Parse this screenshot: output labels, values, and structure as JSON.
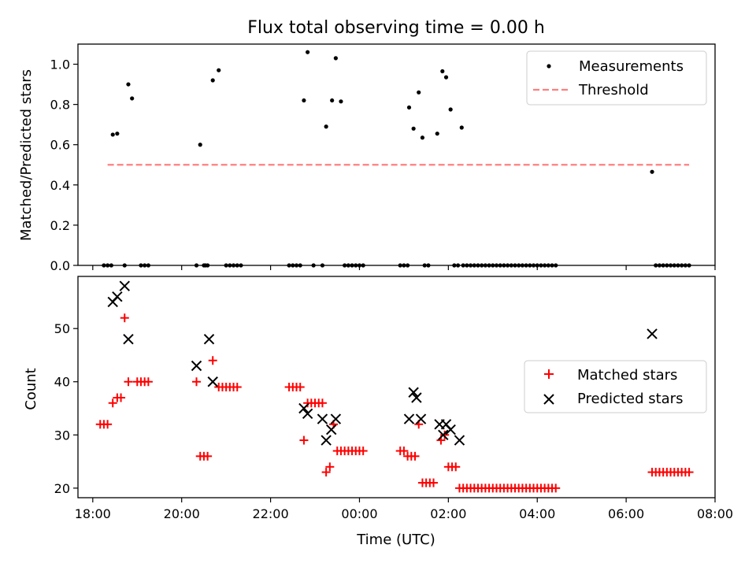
{
  "chart_data": [
    {
      "type": "scatter",
      "title": "Flux total observing time = 0.00 h",
      "ylabel": "Matched/Predicted stars",
      "xlabel": "",
      "xlim": [
        "17:40",
        "08:00"
      ],
      "ylim": [
        0,
        1.1
      ],
      "yticks": [
        0.0,
        0.2,
        0.4,
        0.6,
        0.8,
        1.0
      ],
      "ytick_labels": [
        "0.0",
        "0.2",
        "0.4",
        "0.6",
        "0.8",
        "1.0"
      ],
      "grid": false,
      "legend_placement": "top-right",
      "series": [
        {
          "name": "Measurements",
          "kind": "scatter",
          "color": "#000000",
          "marker": "dot",
          "points": [
            [
              "18:15",
              0
            ],
            [
              "18:20",
              0
            ],
            [
              "18:25",
              0
            ],
            [
              "18:27",
              0.65
            ],
            [
              "18:33",
              0.655
            ],
            [
              "18:43",
              0
            ],
            [
              "18:48",
              0.9
            ],
            [
              "18:53",
              0.83
            ],
            [
              "19:05",
              0
            ],
            [
              "19:10",
              0
            ],
            [
              "19:15",
              0
            ],
            [
              "20:20",
              0
            ],
            [
              "20:25",
              0.6
            ],
            [
              "20:30",
              0
            ],
            [
              "20:32",
              0
            ],
            [
              "20:35",
              0
            ],
            [
              "20:42",
              0.92
            ],
            [
              "20:50",
              0.97
            ],
            [
              "21:00",
              0
            ],
            [
              "21:05",
              0
            ],
            [
              "21:10",
              0
            ],
            [
              "21:15",
              0
            ],
            [
              "21:20",
              0
            ],
            [
              "22:25",
              0
            ],
            [
              "22:30",
              0
            ],
            [
              "22:35",
              0
            ],
            [
              "22:40",
              0
            ],
            [
              "22:45",
              0.82
            ],
            [
              "22:50",
              1.06
            ],
            [
              "22:58",
              0
            ],
            [
              "23:10",
              0
            ],
            [
              "23:15",
              0.69
            ],
            [
              "23:23",
              0.82
            ],
            [
              "23:28",
              1.03
            ],
            [
              "23:35",
              0.815
            ],
            [
              "23:40",
              0
            ],
            [
              "23:45",
              0
            ],
            [
              "23:50",
              0
            ],
            [
              "23:55",
              0
            ],
            [
              "00:00",
              0
            ],
            [
              "00:05",
              0
            ],
            [
              "00:55",
              0
            ],
            [
              "01:00",
              0
            ],
            [
              "01:05",
              0
            ],
            [
              "01:07",
              0.785
            ],
            [
              "01:13",
              0.68
            ],
            [
              "01:20",
              0.86
            ],
            [
              "01:25",
              0.635
            ],
            [
              "01:28",
              0
            ],
            [
              "01:33",
              0
            ],
            [
              "01:45",
              0.655
            ],
            [
              "01:52",
              0.965
            ],
            [
              "01:57",
              0.935
            ],
            [
              "02:03",
              0.775
            ],
            [
              "02:08",
              0
            ],
            [
              "02:13",
              0
            ],
            [
              "02:18",
              0.685
            ],
            [
              "02:20",
              0
            ],
            [
              "02:25",
              0
            ],
            [
              "02:30",
              0
            ],
            [
              "02:35",
              0
            ],
            [
              "02:40",
              0
            ],
            [
              "02:45",
              0
            ],
            [
              "02:50",
              0
            ],
            [
              "02:55",
              0
            ],
            [
              "03:00",
              0
            ],
            [
              "03:05",
              0
            ],
            [
              "03:10",
              0
            ],
            [
              "03:15",
              0
            ],
            [
              "03:20",
              0
            ],
            [
              "03:25",
              0
            ],
            [
              "03:30",
              0
            ],
            [
              "03:35",
              0
            ],
            [
              "03:40",
              0
            ],
            [
              "03:45",
              0
            ],
            [
              "03:50",
              0
            ],
            [
              "03:55",
              0
            ],
            [
              "04:00",
              0
            ],
            [
              "04:05",
              0
            ],
            [
              "04:10",
              0
            ],
            [
              "04:15",
              0
            ],
            [
              "04:20",
              0
            ],
            [
              "04:25",
              0
            ],
            [
              "06:35",
              0.465
            ],
            [
              "06:40",
              0
            ],
            [
              "06:45",
              0
            ],
            [
              "06:50",
              0
            ],
            [
              "06:55",
              0
            ],
            [
              "07:00",
              0
            ],
            [
              "07:05",
              0
            ],
            [
              "07:10",
              0
            ],
            [
              "07:15",
              0
            ],
            [
              "07:20",
              0
            ],
            [
              "07:25",
              0
            ]
          ]
        },
        {
          "name": "Threshold",
          "kind": "dashed-line",
          "color": "#ff7f7f",
          "points": [
            [
              "18:20",
              0.5
            ],
            [
              "07:25",
              0.5
            ]
          ]
        }
      ]
    },
    {
      "type": "scatter",
      "title": "",
      "ylabel": "Count",
      "xlabel": "Time (UTC)",
      "xlim": [
        "17:40",
        "08:00"
      ],
      "ylim": [
        18.2,
        59.8
      ],
      "yticks": [
        20,
        30,
        40,
        50
      ],
      "ytick_labels": [
        "20",
        "30",
        "40",
        "50"
      ],
      "xticks": [
        "18:00",
        "20:00",
        "22:00",
        "00:00",
        "02:00",
        "04:00",
        "06:00",
        "08:00"
      ],
      "xtick_labels": [
        "18:00",
        "20:00",
        "22:00",
        "00:00",
        "02:00",
        "04:00",
        "06:00",
        "08:00"
      ],
      "grid": false,
      "legend_placement": "center-right",
      "series": [
        {
          "name": "Matched stars",
          "kind": "scatter",
          "color": "#ff0000",
          "marker": "plus",
          "points": [
            [
              "18:10",
              32
            ],
            [
              "18:15",
              32
            ],
            [
              "18:20",
              32
            ],
            [
              "18:27",
              36
            ],
            [
              "18:33",
              37
            ],
            [
              "18:38",
              37
            ],
            [
              "18:43",
              52
            ],
            [
              "18:48",
              40
            ],
            [
              "19:00",
              40
            ],
            [
              "19:05",
              40
            ],
            [
              "19:10",
              40
            ],
            [
              "19:15",
              40
            ],
            [
              "20:20",
              40
            ],
            [
              "20:25",
              26
            ],
            [
              "20:30",
              26
            ],
            [
              "20:35",
              26
            ],
            [
              "20:42",
              44
            ],
            [
              "20:50",
              39
            ],
            [
              "20:55",
              39
            ],
            [
              "21:00",
              39
            ],
            [
              "21:05",
              39
            ],
            [
              "21:10",
              39
            ],
            [
              "21:15",
              39
            ],
            [
              "22:25",
              39
            ],
            [
              "22:30",
              39
            ],
            [
              "22:35",
              39
            ],
            [
              "22:40",
              39
            ],
            [
              "22:45",
              29
            ],
            [
              "22:50",
              36
            ],
            [
              "22:55",
              36
            ],
            [
              "23:00",
              36
            ],
            [
              "23:05",
              36
            ],
            [
              "23:10",
              36
            ],
            [
              "23:15",
              23
            ],
            [
              "23:20",
              24
            ],
            [
              "23:25",
              32
            ],
            [
              "23:30",
              27
            ],
            [
              "23:35",
              27
            ],
            [
              "23:40",
              27
            ],
            [
              "23:45",
              27
            ],
            [
              "23:50",
              27
            ],
            [
              "23:55",
              27
            ],
            [
              "00:00",
              27
            ],
            [
              "00:05",
              27
            ],
            [
              "00:55",
              27
            ],
            [
              "01:00",
              27
            ],
            [
              "01:05",
              26
            ],
            [
              "01:10",
              26
            ],
            [
              "01:15",
              26
            ],
            [
              "01:20",
              32
            ],
            [
              "01:25",
              21
            ],
            [
              "01:30",
              21
            ],
            [
              "01:35",
              21
            ],
            [
              "01:40",
              21
            ],
            [
              "01:50",
              29
            ],
            [
              "01:55",
              30
            ],
            [
              "02:00",
              24
            ],
            [
              "02:05",
              24
            ],
            [
              "02:10",
              24
            ],
            [
              "02:15",
              20
            ],
            [
              "02:20",
              20
            ],
            [
              "02:25",
              20
            ],
            [
              "02:30",
              20
            ],
            [
              "02:35",
              20
            ],
            [
              "02:40",
              20
            ],
            [
              "02:45",
              20
            ],
            [
              "02:50",
              20
            ],
            [
              "02:55",
              20
            ],
            [
              "03:00",
              20
            ],
            [
              "03:05",
              20
            ],
            [
              "03:10",
              20
            ],
            [
              "03:15",
              20
            ],
            [
              "03:20",
              20
            ],
            [
              "03:25",
              20
            ],
            [
              "03:30",
              20
            ],
            [
              "03:35",
              20
            ],
            [
              "03:40",
              20
            ],
            [
              "03:45",
              20
            ],
            [
              "03:50",
              20
            ],
            [
              "03:55",
              20
            ],
            [
              "04:00",
              20
            ],
            [
              "04:05",
              20
            ],
            [
              "04:10",
              20
            ],
            [
              "04:15",
              20
            ],
            [
              "04:20",
              20
            ],
            [
              "04:25",
              20
            ],
            [
              "06:35",
              23
            ],
            [
              "06:40",
              23
            ],
            [
              "06:45",
              23
            ],
            [
              "06:50",
              23
            ],
            [
              "06:55",
              23
            ],
            [
              "07:00",
              23
            ],
            [
              "07:05",
              23
            ],
            [
              "07:10",
              23
            ],
            [
              "07:15",
              23
            ],
            [
              "07:20",
              23
            ],
            [
              "07:25",
              23
            ]
          ]
        },
        {
          "name": "Predicted stars",
          "kind": "scatter",
          "color": "#000000",
          "marker": "x",
          "points": [
            [
              "18:27",
              55
            ],
            [
              "18:33",
              56
            ],
            [
              "18:43",
              58
            ],
            [
              "18:48",
              48
            ],
            [
              "20:20",
              43
            ],
            [
              "20:37",
              48
            ],
            [
              "20:42",
              40
            ],
            [
              "22:45",
              35
            ],
            [
              "22:50",
              34
            ],
            [
              "23:10",
              33
            ],
            [
              "23:15",
              29
            ],
            [
              "23:22",
              31
            ],
            [
              "23:28",
              33
            ],
            [
              "01:07",
              33
            ],
            [
              "01:13",
              38
            ],
            [
              "01:17",
              37
            ],
            [
              "01:23",
              33
            ],
            [
              "01:48",
              32
            ],
            [
              "01:53",
              30
            ],
            [
              "01:57",
              32
            ],
            [
              "02:03",
              31
            ],
            [
              "02:15",
              29
            ],
            [
              "06:35",
              49
            ]
          ]
        }
      ]
    }
  ]
}
